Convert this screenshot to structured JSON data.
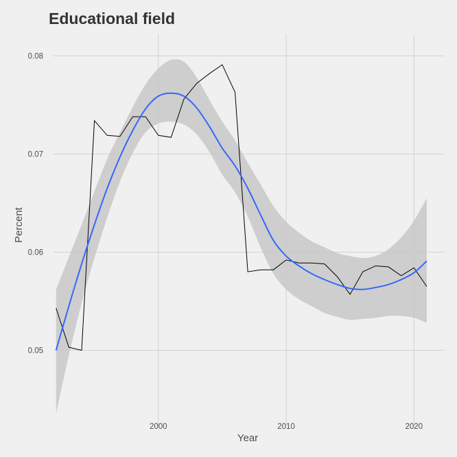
{
  "chart_data": {
    "type": "line",
    "title": "Educational field",
    "xlabel": "Year",
    "ylabel": "Percent",
    "xlim": [
      1991.8,
      2022.4
    ],
    "ylim": [
      0.0422,
      0.0822
    ],
    "xticks": [
      2000,
      2010,
      2020
    ],
    "xtick_labels": [
      "2000",
      "2010",
      "2020"
    ],
    "yticks": [
      0.05,
      0.06,
      0.07,
      0.08
    ],
    "ytick_labels": [
      "0.05",
      "0.06",
      "0.07",
      "0.08"
    ],
    "grid": true,
    "legend": "none",
    "colors": {
      "background": "#f0f0f0",
      "grid": "#d2d2d2",
      "raw_line": "#000000",
      "smooth_line": "#3366ff",
      "ci_band": "#c8c8c8"
    },
    "series": [
      {
        "x": [
          1992,
          1993,
          1994,
          1995,
          1996,
          1997,
          1998,
          1999,
          2000,
          2001,
          2002,
          2003,
          2004,
          2005,
          2006,
          2007,
          2008,
          2009,
          2010,
          2011,
          2012,
          2013,
          2014,
          2015,
          2016,
          2017,
          2018,
          2019,
          2020,
          2021
        ],
        "values": [
          0.0543,
          0.0503,
          0.05,
          0.0734,
          0.0719,
          0.0718,
          0.0738,
          0.0738,
          0.0719,
          0.0717,
          0.0756,
          0.0772,
          0.0782,
          0.0791,
          0.0763,
          0.058,
          0.0582,
          0.0582,
          0.0592,
          0.0589,
          0.0589,
          0.0588,
          0.0575,
          0.0557,
          0.058,
          0.0586,
          0.0585,
          0.0576,
          0.0584,
          0.0565
        ]
      },
      {
        "x": [
          1992,
          1993,
          1994,
          1995,
          1996,
          1997,
          1998,
          1999,
          2000,
          2001,
          2002,
          2003,
          2004,
          2005,
          2006,
          2007,
          2008,
          2009,
          2010,
          2011,
          2012,
          2013,
          2014,
          2015,
          2016,
          2017,
          2018,
          2019,
          2020,
          2021
        ],
        "values": [
          0.05,
          0.0545,
          0.0588,
          0.0628,
          0.0665,
          0.0697,
          0.0724,
          0.0746,
          0.0759,
          0.0762,
          0.0759,
          0.0747,
          0.0728,
          0.0706,
          0.0688,
          0.0665,
          0.0638,
          0.0612,
          0.0596,
          0.0586,
          0.0578,
          0.0572,
          0.0567,
          0.0563,
          0.0562,
          0.0564,
          0.0567,
          0.0572,
          0.0579,
          0.0591
        ],
        "ci_lower": [
          0.0435,
          0.0495,
          0.0548,
          0.0594,
          0.0635,
          0.0672,
          0.0701,
          0.0722,
          0.0731,
          0.0733,
          0.073,
          0.072,
          0.0702,
          0.0679,
          0.0661,
          0.0636,
          0.0605,
          0.0578,
          0.0562,
          0.0552,
          0.0545,
          0.0538,
          0.0534,
          0.0531,
          0.0532,
          0.0533,
          0.0535,
          0.0535,
          0.0533,
          0.0528
        ],
        "ci_upper": [
          0.0562,
          0.0595,
          0.0628,
          0.0662,
          0.0695,
          0.0722,
          0.0748,
          0.0771,
          0.0787,
          0.0796,
          0.0794,
          0.0778,
          0.0755,
          0.0733,
          0.0714,
          0.0691,
          0.0669,
          0.0647,
          0.0631,
          0.062,
          0.0611,
          0.0605,
          0.0599,
          0.0596,
          0.0594,
          0.0596,
          0.0603,
          0.0615,
          0.0632,
          0.0655
        ]
      }
    ]
  }
}
